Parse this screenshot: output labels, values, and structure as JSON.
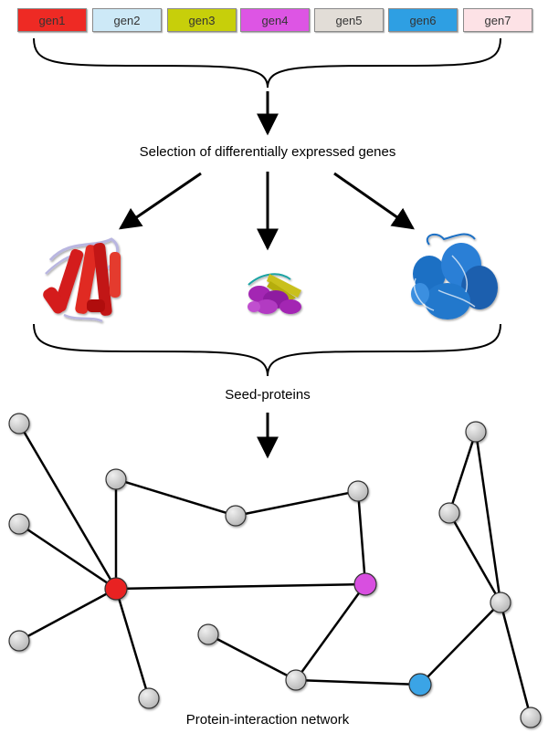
{
  "genes": [
    {
      "label": "gen1",
      "color": "#ee2a24"
    },
    {
      "label": "gen2",
      "color": "#cde9f7"
    },
    {
      "label": "gen3",
      "color": "#c7cf0a"
    },
    {
      "label": "gen4",
      "color": "#dd55e4"
    },
    {
      "label": "gen5",
      "color": "#e2ddd7"
    },
    {
      "label": "gen6",
      "color": "#2e9fe3"
    },
    {
      "label": "gen7",
      "color": "#fde2e6"
    }
  ],
  "captions": {
    "selection": "Selection of differentially expressed genes",
    "seed": "Seed-proteins",
    "network": "Protein-interaction network"
  },
  "proteins": [
    {
      "name": "red-protein",
      "color": "#d41a1a"
    },
    {
      "name": "magenta-protein",
      "color": "#a327b3"
    },
    {
      "name": "blue-protein",
      "color": "#1f6fc4"
    }
  ],
  "network": {
    "node_color": "#c8c8c8",
    "seed_colors": {
      "red": "#e82020",
      "magenta": "#d84fe0",
      "blue": "#3aa4e6"
    }
  }
}
